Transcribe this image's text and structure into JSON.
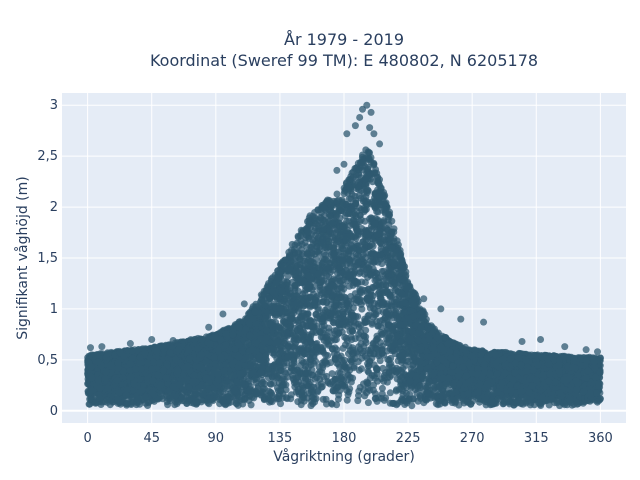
{
  "chart_data": {
    "type": "scatter",
    "title_line1": "År 1979 - 2019",
    "title_line2": "Koordinat (Sweref 99 TM): E 480802, N 6205178",
    "xlabel": "Vågriktning (grader)",
    "ylabel": "Signifikant våghöjd (m)",
    "xlim": [
      -18,
      378
    ],
    "ylim": [
      -0.12,
      3.12
    ],
    "x_ticks": [
      0,
      45,
      90,
      135,
      180,
      225,
      270,
      315,
      360
    ],
    "x_tick_labels": [
      "0",
      "45",
      "90",
      "135",
      "180",
      "225",
      "270",
      "315",
      "360"
    ],
    "y_ticks": [
      0,
      0.5,
      1,
      1.5,
      2,
      2.5,
      3
    ],
    "y_tick_labels": [
      "0",
      "0,5",
      "1",
      "1,5",
      "2",
      "2,5",
      "3"
    ],
    "grid": true,
    "background": "#e5ecf6",
    "marker_color": "#2f5a70",
    "marker_opacity": 0.75,
    "envelope": [
      [
        0,
        0.55
      ],
      [
        45,
        0.62
      ],
      [
        90,
        0.75
      ],
      [
        110,
        0.9
      ],
      [
        125,
        1.2
      ],
      [
        140,
        1.55
      ],
      [
        155,
        1.9
      ],
      [
        170,
        2.1
      ],
      [
        180,
        2.2
      ],
      [
        190,
        2.45
      ],
      [
        197,
        2.6
      ],
      [
        205,
        2.3
      ],
      [
        215,
        1.8
      ],
      [
        225,
        1.3
      ],
      [
        240,
        0.85
      ],
      [
        255,
        0.68
      ],
      [
        270,
        0.6
      ],
      [
        315,
        0.55
      ],
      [
        360,
        0.52
      ]
    ],
    "outliers": [
      [
        2,
        0.62
      ],
      [
        10,
        0.63
      ],
      [
        30,
        0.66
      ],
      [
        45,
        0.7
      ],
      [
        60,
        0.69
      ],
      [
        75,
        0.7
      ],
      [
        85,
        0.82
      ],
      [
        95,
        0.95
      ],
      [
        110,
        1.05
      ],
      [
        127,
        1.25
      ],
      [
        175,
        2.36
      ],
      [
        180,
        2.42
      ],
      [
        182,
        2.72
      ],
      [
        188,
        2.8
      ],
      [
        191,
        2.88
      ],
      [
        193,
        2.96
      ],
      [
        196,
        3.0
      ],
      [
        199,
        2.93
      ],
      [
        198,
        2.78
      ],
      [
        201,
        2.72
      ],
      [
        205,
        2.62
      ],
      [
        212,
        1.95
      ],
      [
        222,
        1.4
      ],
      [
        236,
        1.1
      ],
      [
        248,
        1.0
      ],
      [
        262,
        0.9
      ],
      [
        278,
        0.87
      ],
      [
        305,
        0.68
      ],
      [
        318,
        0.7
      ],
      [
        335,
        0.63
      ],
      [
        350,
        0.6
      ],
      [
        358,
        0.58
      ]
    ]
  }
}
